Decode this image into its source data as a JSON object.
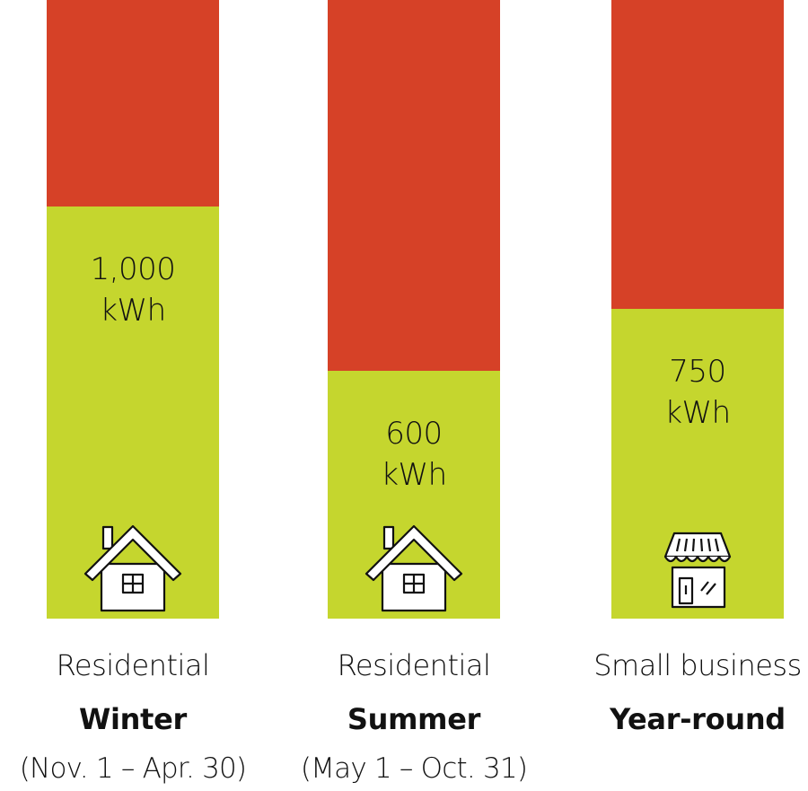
{
  "colors": {
    "remaining": "#d64127",
    "used": "#c5d62e"
  },
  "chart_data": {
    "type": "bar",
    "stacked": true,
    "ylim": [
      0,
      1500
    ],
    "categories": [
      {
        "line1": "Residential",
        "line2": "Winter",
        "line3": "(Nov. 1 – Apr. 30)",
        "icon": "house-icon"
      },
      {
        "line1": "Residential",
        "line2": "Summer",
        "line3": "(May 1 – Oct. 31)",
        "icon": "house-icon"
      },
      {
        "line1": "Small business",
        "line2": "Year-round",
        "line3": "",
        "icon": "storefront-icon"
      }
    ],
    "values": [
      1000,
      600,
      750
    ],
    "value_labels": [
      {
        "number": "1,000",
        "unit": "kWh"
      },
      {
        "number": "600",
        "unit": "kWh"
      },
      {
        "number": "750",
        "unit": "kWh"
      }
    ]
  }
}
